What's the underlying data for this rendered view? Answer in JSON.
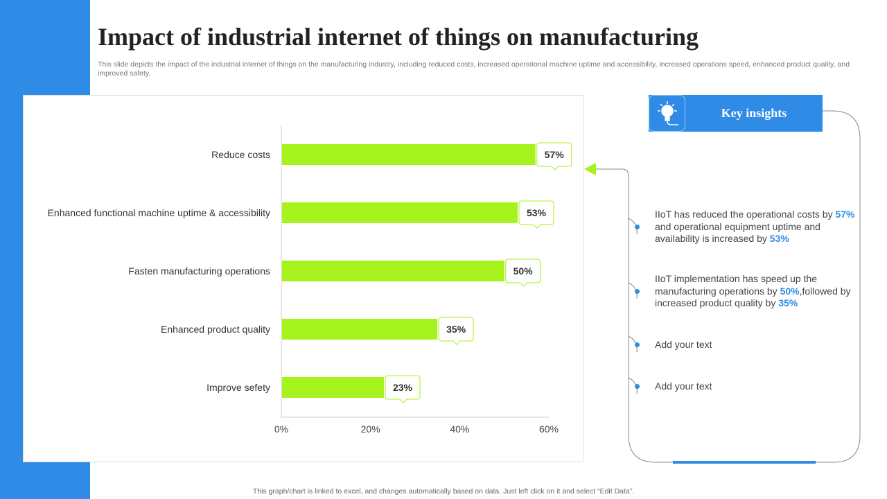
{
  "title": "Impact of industrial internet of things on manufacturing",
  "subtitle": "This slide depicts the impact of the industrial internet of things on the manufacturing industry, including reduced costs, increased operational machine uptime and accessibility, increased operations speed, enhanced product quality, and improved safety.",
  "footer": "This graph/chart is linked to excel, and changes automatically based on data. Just left click on it and select “Edit Data”.",
  "colors": {
    "accent": "#2f8be6",
    "bar": "#a6f21c"
  },
  "key_insights": {
    "title": "Key insights",
    "icon": "brain-lightbulb-icon",
    "items": [
      {
        "parts": [
          "IIoT  has reduced the operational  costs by ",
          "57%",
          " and operational equipment uptime and availability  is increased by ",
          "53%"
        ]
      },
      {
        "parts": [
          "IIoT  implementation has speed up the manufacturing operations by ",
          "50%",
          ",followed by increased product quality by ",
          "35%"
        ]
      },
      {
        "parts": [
          "Add your text"
        ]
      },
      {
        "parts": [
          "Add your text"
        ]
      }
    ]
  },
  "chart_data": {
    "type": "bar",
    "orientation": "horizontal",
    "categories": [
      "Reduce costs",
      "Enhanced functional machine uptime & accessibility",
      "Fasten manufacturing operations",
      "Enhanced product quality ",
      "Improve sefety"
    ],
    "values": [
      57,
      53,
      50,
      35,
      23
    ],
    "data_labels": [
      "57%",
      "53%",
      "50%",
      "35%",
      "23%"
    ],
    "xticks": [
      "0%",
      "20%",
      "40%",
      "60%"
    ],
    "xtick_values": [
      0,
      20,
      40,
      60
    ],
    "xlim": [
      0,
      60
    ],
    "title": "",
    "xlabel": "",
    "ylabel": ""
  }
}
